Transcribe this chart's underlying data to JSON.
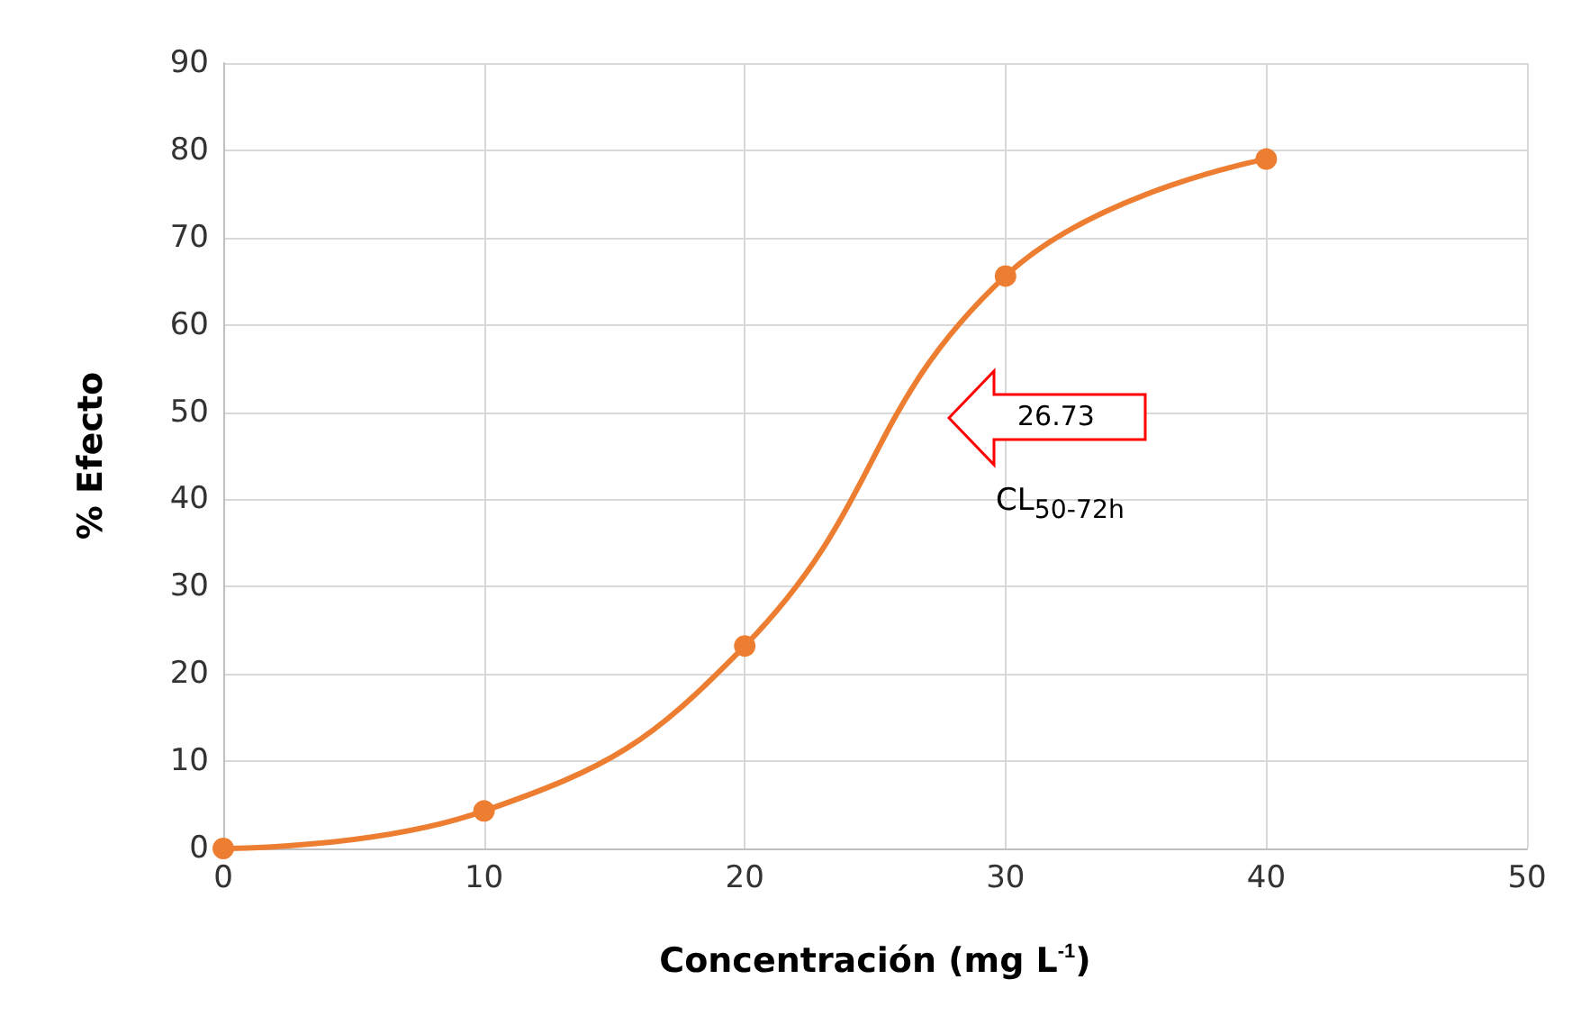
{
  "chart_data": {
    "type": "line",
    "xlabel": "Concentración (mg L$^{-1}$)",
    "ylabel": "% Efecto",
    "x": [
      0,
      10,
      20,
      30,
      40
    ],
    "series": [
      {
        "color": "#ed7d31",
        "values": [
          0,
          4.3,
          23.2,
          65.6,
          79
        ]
      }
    ],
    "xlim": [
      0,
      50
    ],
    "xticks": [
      0,
      10,
      20,
      30,
      40,
      50
    ],
    "ylim": [
      0,
      90
    ],
    "yticks": [
      0,
      10,
      20,
      30,
      40,
      50,
      60,
      70,
      80,
      90
    ],
    "grid": true,
    "marker": "circle",
    "line_style": "solid",
    "annotations": [
      "26.73",
      "CL$_{50-72h}$"
    ]
  }
}
